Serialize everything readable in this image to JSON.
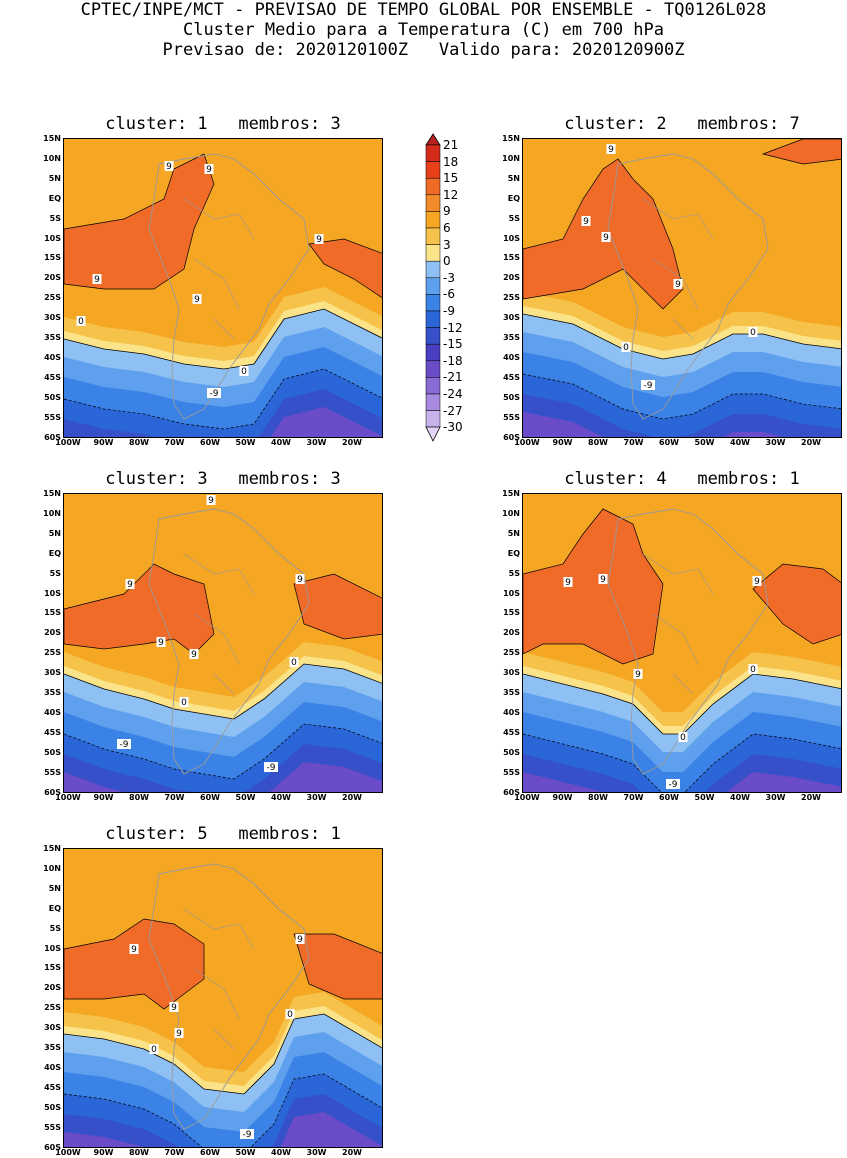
{
  "header": {
    "line1": "CPTEC/INPE/MCT - PREVISAO DE TEMPO GLOBAL POR ENSEMBLE - TQ0126L028",
    "line2": "Cluster Medio para a Temperatura (C) em 700 hPa",
    "line3": "Previsao de: 2020120100Z   Valido para: 2020120900Z"
  },
  "panels": [
    {
      "title": "cluster: 1   membros: 3"
    },
    {
      "title": "cluster: 2   membros: 7"
    },
    {
      "title": "cluster: 3   membros: 3"
    },
    {
      "title": "cluster: 4   membros: 1"
    },
    {
      "title": "cluster: 5   membros: 1"
    }
  ],
  "lat_ticks": [
    "15N",
    "10N",
    "5N",
    "EQ",
    "5S",
    "10S",
    "15S",
    "20S",
    "25S",
    "30S",
    "35S",
    "40S",
    "45S",
    "50S",
    "55S",
    "60S"
  ],
  "lon_ticks": [
    "100W",
    "90W",
    "80W",
    "70W",
    "60W",
    "50W",
    "40W",
    "30W",
    "20W"
  ],
  "colorbar": {
    "levels": [
      "21",
      "18",
      "15",
      "12",
      "9",
      "6",
      "3",
      "0",
      "-3",
      "-6",
      "-9",
      "-12",
      "-15",
      "-18",
      "-21",
      "-24",
      "-27",
      "-30"
    ],
    "colors": [
      "#b81f1f",
      "#d42a1a",
      "#e8411a",
      "#f06a28",
      "#f28a2c",
      "#f5a623",
      "#f7c24a",
      "#fbe38a",
      "#8fc0f4",
      "#5fa0ee",
      "#3a82e6",
      "#2a66d8",
      "#3550c8",
      "#4a3fc2",
      "#6a4cc8",
      "#8a6ad4",
      "#a88ae0",
      "#c8b2ec",
      "#e2d4f4"
    ]
  },
  "contour_labels": {
    "p1": [
      "9",
      "9",
      "9",
      "9",
      "9",
      "0",
      "0",
      "-9"
    ],
    "p2": [
      "9",
      "9",
      "9",
      "9",
      "0",
      "0",
      "-9"
    ],
    "p3": [
      "9",
      "9",
      "9",
      "9",
      "9",
      "0",
      "0",
      "-9",
      "-9"
    ],
    "p4": [
      "9",
      "9",
      "9",
      "9",
      "0",
      "0",
      "-9"
    ],
    "p5": [
      "9",
      "9",
      "9",
      "9",
      "0",
      "0",
      "-9"
    ]
  }
}
